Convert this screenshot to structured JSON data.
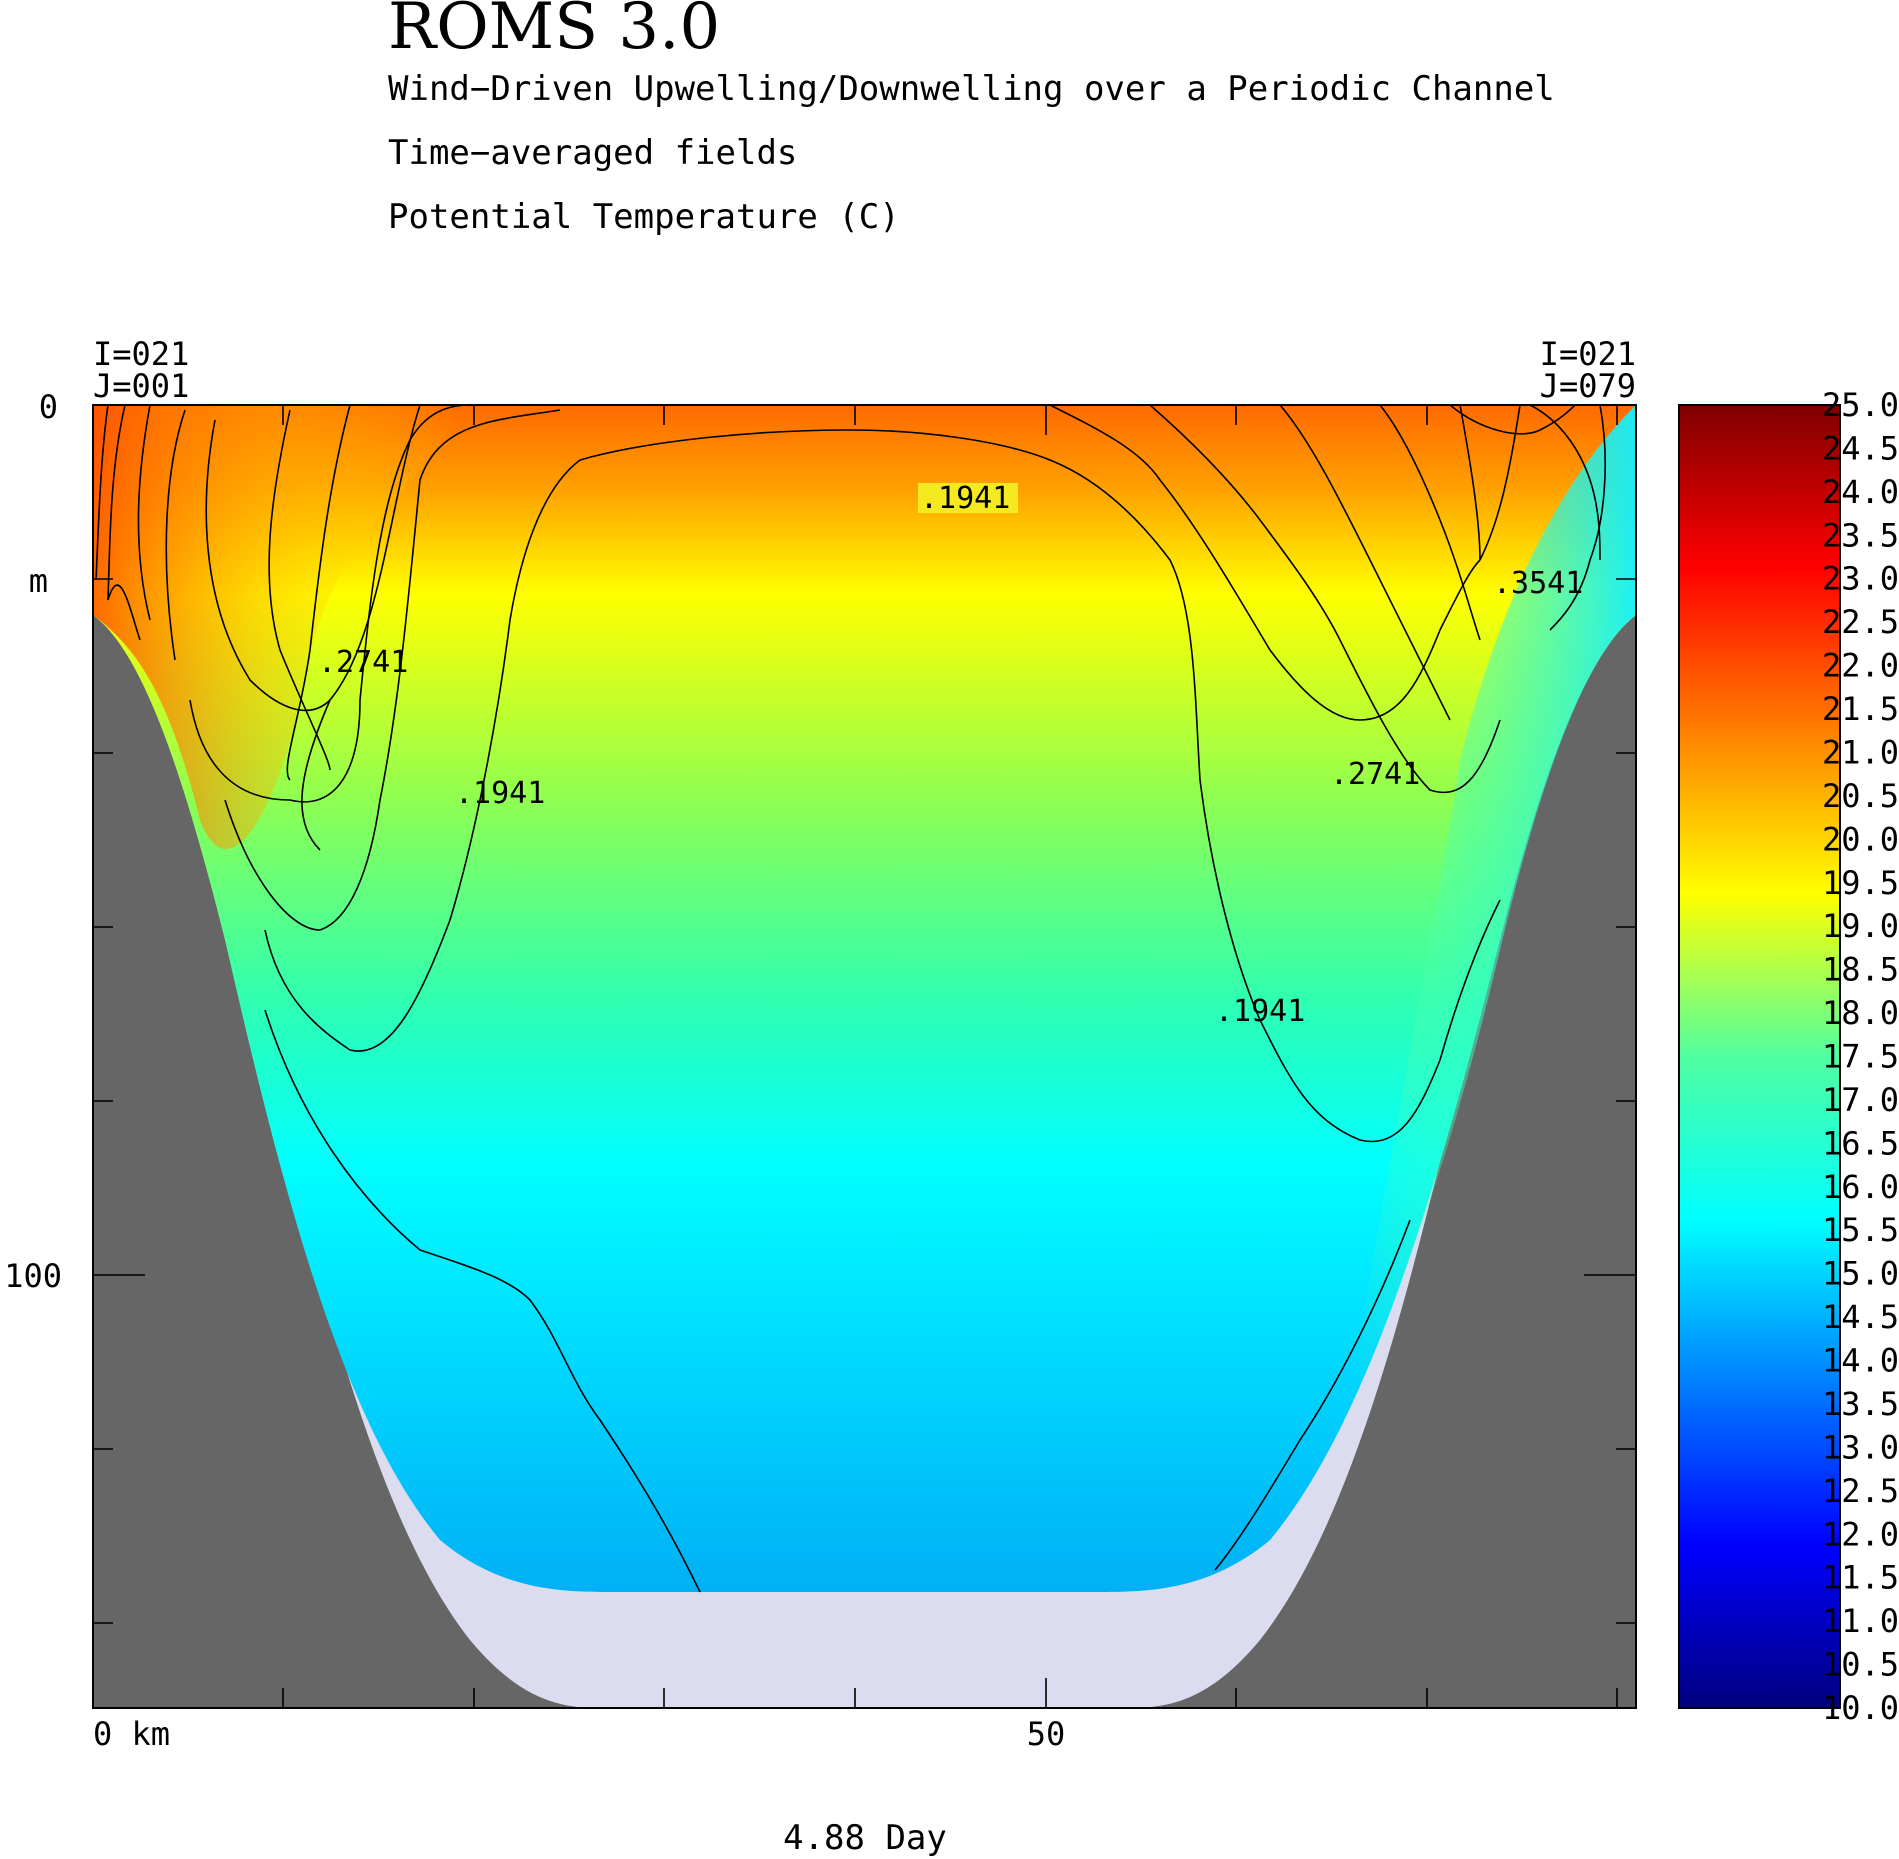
{
  "header": {
    "title": "ROMS 3.0",
    "line1": "Wind−Driven Upwelling/Downwelling over a Periodic Channel",
    "line2": "Time−averaged fields",
    "line3": "Potential Temperature (C)"
  },
  "corner_labels": {
    "left_i": "I=021",
    "left_j": "J=001",
    "right_i": "I=021",
    "right_j": "J=079"
  },
  "footer": {
    "time": "4.88 Day"
  },
  "chart_data": {
    "type": "heatmap",
    "title": "Potential Temperature (C)",
    "xlabel": "km",
    "ylabel": "m",
    "x_ticks": [
      "0 km",
      "50"
    ],
    "y_ticks": [
      "0",
      "m",
      "100"
    ],
    "xlim": [
      0,
      81
    ],
    "ylim": [
      150,
      0
    ],
    "colorbar": {
      "min": 10.0,
      "max": 25.0,
      "labels": [
        "25.0",
        "24.5",
        "24.0",
        "23.5",
        "23.0",
        "22.5",
        "22.0",
        "21.5",
        "21.0",
        "20.5",
        "20.0",
        "19.5",
        "19.0",
        "18.5",
        "18.0",
        "17.5",
        "17.0",
        "16.5",
        "16.0",
        "15.5",
        "15.0",
        "14.5",
        "14.0",
        "13.5",
        "13.0",
        "12.5",
        "12.0",
        "11.5",
        "11.0",
        "10.5",
        "10.0"
      ]
    },
    "contour_labels": [
      ".1941",
      ".2741",
      ".1941",
      ".3541",
      ".2741",
      ".1941"
    ],
    "colors": {
      "land": "#666666",
      "masked_bottom": "#dcdcf0",
      "warm": "#ff6a00",
      "cool": "#00b5f5"
    }
  }
}
